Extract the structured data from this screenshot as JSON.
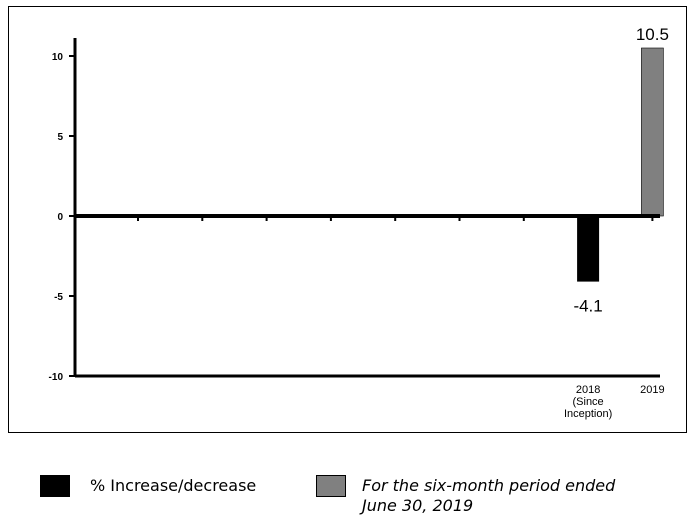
{
  "chart_data": {
    "type": "bar",
    "title": "",
    "xlabel": "",
    "ylabel": "",
    "ylim": [
      -10,
      12
    ],
    "yticks": [
      10,
      5,
      0,
      -5,
      -10
    ],
    "grid": false,
    "categories": [
      "",
      "",
      "",
      "",
      "",
      "",
      "",
      "2018\n(Since\nInception)",
      "2019"
    ],
    "series": [
      {
        "name": "% Increase/decrease",
        "color": "#000000",
        "values": [
          null,
          null,
          null,
          null,
          null,
          null,
          null,
          -4.1,
          null
        ],
        "data_labels": [
          "",
          "",
          "",
          "",
          "",
          "",
          "",
          "-4.1",
          ""
        ]
      },
      {
        "name": "For the six-month period ended\nJune 30, 2019",
        "color": "#808080",
        "values": [
          null,
          null,
          null,
          null,
          null,
          null,
          null,
          null,
          10.5
        ],
        "data_labels": [
          "",
          "",
          "",
          "",
          "",
          "",
          "",
          "",
          "10.5"
        ]
      }
    ],
    "legend_position": "bottom"
  },
  "legend": [
    {
      "label": "% Increase/decrease",
      "color": "#000000",
      "italic": false
    },
    {
      "label": "For the six-month period ended\nJune 30, 2019",
      "color": "#808080",
      "italic": true
    }
  ]
}
